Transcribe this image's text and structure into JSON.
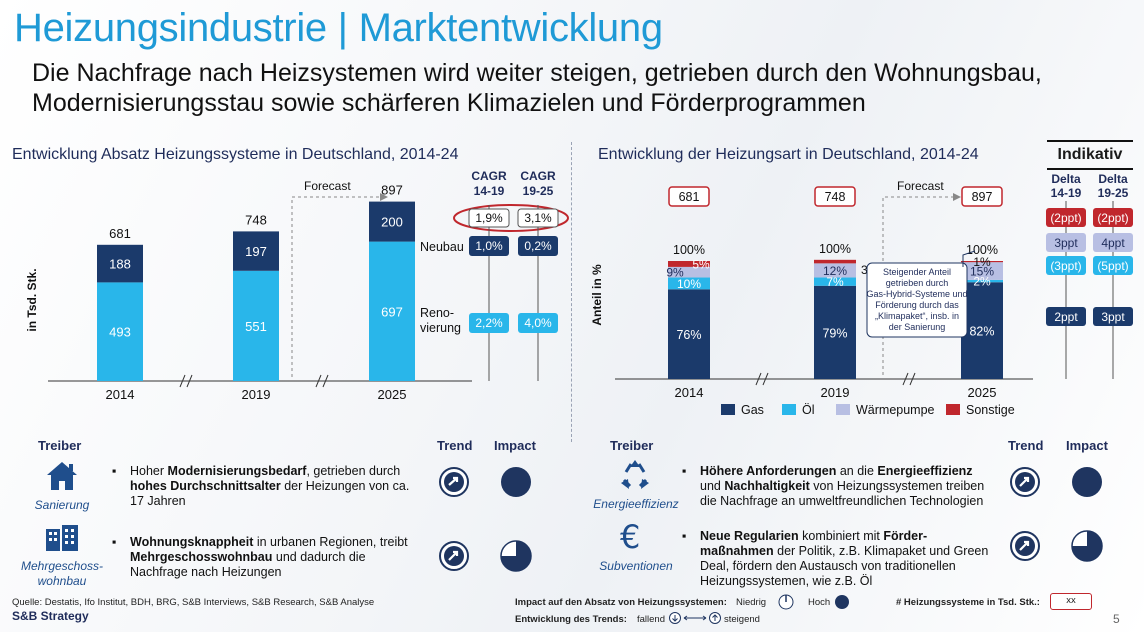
{
  "header": {
    "title": "Heizungsindustrie | Marktentwicklung",
    "subtitle": "Die Nachfrage nach Heizsystemen wird weiter steigen, getrieben durch den Wohnungsbau, Modernisierungsstau sowie schärferen Klimazielen und Förderprogrammen"
  },
  "chart_data": [
    {
      "type": "bar",
      "title": "Entwicklung Absatz Heizungssysteme in Deutschland, 2014-24",
      "ylabel": "in Tsd. Stk.",
      "categories": [
        "2014",
        "2019",
        "2025"
      ],
      "totals": [
        "681",
        "748",
        "897"
      ],
      "series": [
        {
          "name": "Renovierung",
          "values": [
            493,
            551,
            697
          ],
          "color": "#29b6ea"
        },
        {
          "name": "Neubau",
          "values": [
            188,
            197,
            200
          ],
          "color": "#1b3a6b"
        }
      ],
      "series_labels": [
        "Reno-",
        "vierung",
        "Neubau"
      ],
      "forecast_label": "Forecast",
      "cagr": {
        "headers": [
          [
            "CAGR",
            "14-19"
          ],
          [
            "CAGR",
            "19-25"
          ]
        ],
        "total": [
          "1,9%",
          "3,1%"
        ],
        "neubau": [
          "1,0%",
          "0,2%"
        ],
        "renovierung": [
          "2,2%",
          "4,0%"
        ]
      }
    },
    {
      "type": "bar",
      "title": "Entwicklung der Heizungsart in Deutschland, 2014-24",
      "ylabel": "Anteil in %",
      "categories": [
        "2014",
        "2019",
        "2025"
      ],
      "totals": [
        "681",
        "748",
        "897"
      ],
      "top_label": "100%",
      "series": [
        {
          "name": "Gas",
          "values": [
            76,
            79,
            82
          ],
          "labels": [
            "76%",
            "79%",
            "82%"
          ],
          "color": "#1b3a6b"
        },
        {
          "name": "Öl",
          "values": [
            10,
            7,
            2
          ],
          "labels": [
            "10%",
            "7%",
            "2%"
          ],
          "color": "#29b6ea"
        },
        {
          "name": "Wärmepumpe",
          "values": [
            9,
            12,
            15
          ],
          "labels": [
            "9%",
            "12%",
            "15%"
          ],
          "color": "#b8bfe3"
        },
        {
          "name": "Sonstige",
          "values": [
            5,
            3,
            1
          ],
          "labels": [
            "5%",
            "3%",
            "1%"
          ],
          "color": "#c0272d"
        }
      ],
      "forecast_label": "Forecast",
      "callout": "Steigender Anteil getrieben durch Gas-Hybrid-Systeme und Förderung durch das „Klimapaket“, insb. in der Sanierung",
      "indicative": {
        "title": "Indikativ",
        "headers": [
          [
            "Delta",
            "14-19"
          ],
          [
            "Delta",
            "19-25"
          ]
        ],
        "rows": [
          [
            "(2ppt)",
            "(2ppt)"
          ],
          [
            "3ppt",
            "4ppt"
          ],
          [
            "(3ppt)",
            "(5ppt)"
          ],
          [
            "2ppt",
            "3ppt"
          ]
        ]
      }
    }
  ],
  "drivers_left": {
    "head_treiber": "Treiber",
    "head_trend": "Trend",
    "head_impact": "Impact",
    "items": [
      {
        "label": "Sanierung",
        "icon": "house-icon",
        "pre": "Hoher ",
        "b1": "Modernisierungsbedarf",
        "mid": ", getrieben durch ",
        "b2": "hohes Durchschnittsalter",
        "post": " der Heizungen von ca. 17 Jahren",
        "impact": "high"
      },
      {
        "label": "Mehrgeschoss-wohnbau",
        "icon": "building-icon",
        "pre": "",
        "b1": "Wohnungsknappheit",
        "mid": " in urbanen Regionen, treibt ",
        "b2": "Mehrgeschosswohnbau",
        "post": " und dadurch die Nachfrage nach Heizungen",
        "impact": "medium"
      }
    ]
  },
  "drivers_right": {
    "head_treiber": "Treiber",
    "head_trend": "Trend",
    "head_impact": "Impact",
    "items": [
      {
        "label": "Energieeffizienz",
        "icon": "recycle-icon",
        "pre": "",
        "b1": "Höhere Anforderungen",
        "mid": " an die ",
        "b2": "Energieeffizienz",
        "mid2": " und ",
        "b3": "Nachhaltigkeit",
        "post": " von Heizungssystemen treiben die Nachfrage an umweltfreundlichen Technologien",
        "impact": "high"
      },
      {
        "label": "Subventionen",
        "icon": "euro-icon",
        "pre": "",
        "b1": "Neue Regularien",
        "mid": " kombiniert mit ",
        "b2": "Förder-maßnahmen",
        "post": " der Politik, z.B. Klimapaket und Green Deal, fördern den Austausch von traditionellen Heizungssystemen, wie z.B. Öl",
        "impact": "medium"
      }
    ]
  },
  "footer": {
    "source": "Quelle: Destatis, Ifo Institut, BDH, BRG, S&B Interviews, S&B Research, S&B Analyse",
    "brand": "S&B Strategy",
    "impact_legend": "Impact auf den Absatz von Heizungssystemen:",
    "niedrig": "Niedrig",
    "hoch": "Hoch",
    "trend_legend": "Entwicklung des Trends:",
    "fallend": "fallend",
    "steigend": "steigend",
    "count_legend": "# Heizungssysteme in Tsd. Stk.:",
    "count_box": "xx",
    "page": "5"
  }
}
